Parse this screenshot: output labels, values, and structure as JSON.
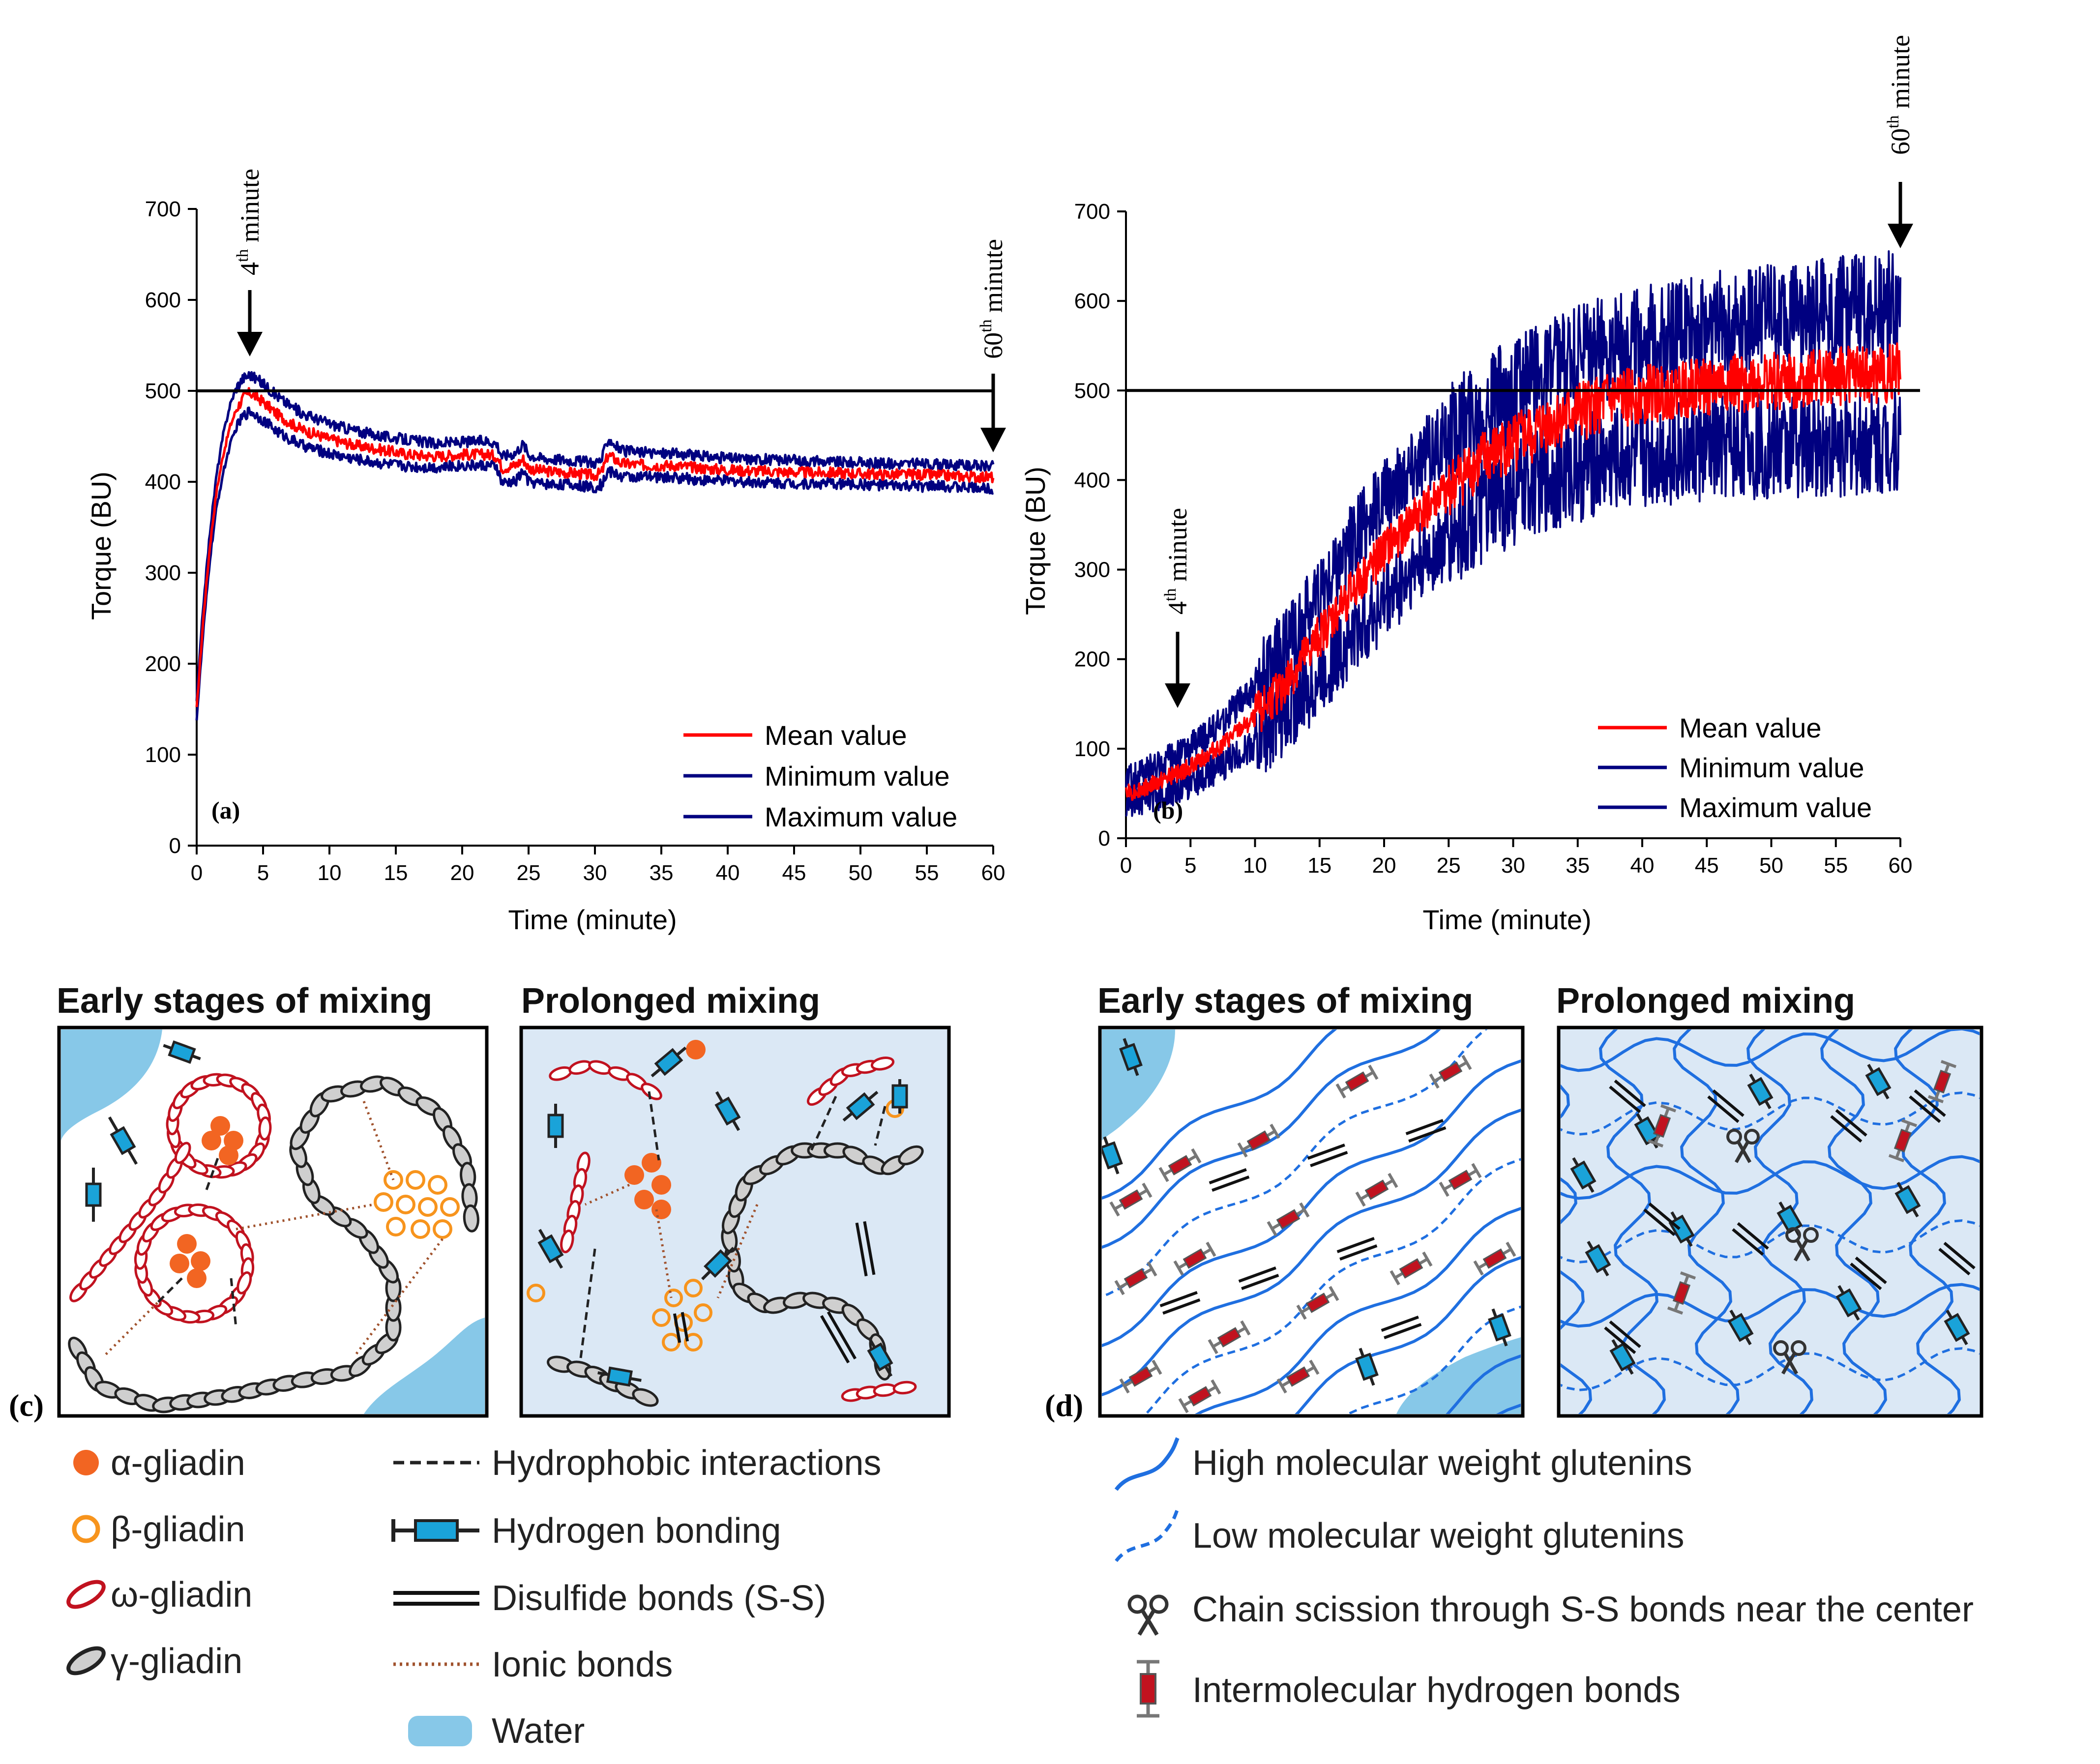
{
  "chart_data": [
    {
      "type": "line",
      "panel_label": "(a)",
      "xlabel": "Time (minute)",
      "ylabel": "Torque (BU)",
      "xlim": [
        0,
        60
      ],
      "ylim": [
        0,
        700
      ],
      "x_ticks": [
        "0",
        "5",
        "10",
        "15",
        "20",
        "25",
        "30",
        "35",
        "40",
        "45",
        "50",
        "55",
        "60"
      ],
      "y_ticks": [
        "0",
        "100",
        "200",
        "300",
        "400",
        "500",
        "600",
        "700"
      ],
      "reference_line": 500,
      "annotations": [
        {
          "base": "4",
          "sup": "th",
          "rest": " minute",
          "x": 4
        },
        {
          "base": "60",
          "sup": "th",
          "rest": " minute",
          "x": 60
        }
      ],
      "legend": [
        "Mean value",
        "Minimum value",
        "Maximum value"
      ],
      "series": [
        {
          "name": "Mean value",
          "color": "#ff0000",
          "x": [
            0,
            0.5,
            1,
            1.5,
            2,
            2.5,
            3,
            3.5,
            4,
            5,
            6,
            7,
            8,
            10,
            12,
            14,
            16,
            18,
            20,
            22,
            22.6,
            23,
            24,
            24.6,
            25,
            26,
            28,
            30,
            30.5,
            31,
            32,
            34,
            36,
            38,
            40,
            42,
            44,
            46,
            48,
            50,
            52,
            54,
            56,
            58,
            60
          ],
          "y": [
            150,
            250,
            330,
            390,
            430,
            460,
            480,
            492,
            498,
            488,
            475,
            465,
            457,
            447,
            440,
            435,
            430,
            428,
            430,
            430,
            428,
            415,
            418,
            425,
            415,
            412,
            410,
            407,
            410,
            430,
            420,
            418,
            418,
            415,
            413,
            412,
            411,
            410,
            410,
            409,
            408,
            408,
            407,
            406,
            405
          ]
        },
        {
          "name": "Minimum value",
          "color": "#000080",
          "x": [
            0,
            0.5,
            1,
            1.5,
            2,
            2.5,
            3,
            3.5,
            4,
            5,
            6,
            7,
            8,
            10,
            12,
            14,
            16,
            18,
            20,
            22,
            22.6,
            23,
            24,
            24.6,
            25,
            26,
            28,
            30,
            30.5,
            31,
            32,
            34,
            36,
            38,
            40,
            42,
            44,
            46,
            48,
            50,
            52,
            54,
            56,
            58,
            60
          ],
          "y": [
            140,
            235,
            315,
            372,
            410,
            440,
            460,
            472,
            478,
            468,
            456,
            447,
            440,
            431,
            425,
            420,
            417,
            416,
            418,
            418,
            416,
            398,
            400,
            412,
            400,
            398,
            397,
            394,
            397,
            412,
            406,
            405,
            405,
            402,
            401,
            400,
            399,
            398,
            398,
            397,
            396,
            395,
            395,
            394,
            393
          ]
        },
        {
          "name": "Maximum value",
          "color": "#000080",
          "x": [
            0,
            0.5,
            1,
            1.5,
            2,
            2.5,
            3,
            3.5,
            4,
            5,
            6,
            7,
            8,
            10,
            12,
            14,
            16,
            18,
            20,
            22,
            22.6,
            23,
            24,
            24.6,
            25,
            26,
            28,
            30,
            30.5,
            31,
            32,
            34,
            36,
            38,
            40,
            42,
            44,
            46,
            48,
            50,
            52,
            54,
            56,
            58,
            60
          ],
          "y": [
            160,
            265,
            345,
            408,
            452,
            484,
            504,
            514,
            518,
            508,
            495,
            484,
            475,
            464,
            456,
            450,
            446,
            442,
            444,
            445,
            442,
            428,
            432,
            442,
            430,
            426,
            424,
            421,
            424,
            448,
            434,
            432,
            431,
            428,
            426,
            425,
            424,
            423,
            422,
            421,
            420,
            420,
            419,
            418,
            417
          ]
        }
      ]
    },
    {
      "type": "line",
      "panel_label": "(b)",
      "xlabel": "Time (minute)",
      "ylabel": "Torque (BU)",
      "xlim": [
        0,
        60
      ],
      "ylim": [
        0,
        700
      ],
      "x_ticks": [
        "0",
        "5",
        "10",
        "15",
        "20",
        "25",
        "30",
        "35",
        "40",
        "45",
        "50",
        "55",
        "60"
      ],
      "y_ticks": [
        "0",
        "100",
        "200",
        "300",
        "400",
        "500",
        "600",
        "700"
      ],
      "reference_line": 500,
      "annotations": [
        {
          "base": "4",
          "sup": "th",
          "rest": " minute",
          "x": 4
        },
        {
          "base": "60",
          "sup": "th",
          "rest": " minute",
          "x": 60
        }
      ],
      "legend": [
        "Mean value",
        "Minimum value",
        "Maximum value"
      ],
      "series": [
        {
          "name": "Mean value",
          "color": "#ff0000",
          "x": [
            0,
            2.5,
            5,
            7.5,
            10,
            12.5,
            15,
            17.5,
            20,
            22.5,
            25,
            27.5,
            30,
            32.5,
            35,
            37.5,
            40,
            42.5,
            45,
            47.5,
            50,
            52.5,
            55,
            57.5,
            60
          ],
          "y": [
            50,
            62,
            80,
            105,
            135,
            175,
            225,
            275,
            320,
            360,
            390,
            420,
            440,
            460,
            475,
            488,
            495,
            500,
            505,
            508,
            510,
            512,
            515,
            518,
            520
          ]
        },
        {
          "name": "Minimum value",
          "color": "#000080",
          "x": [
            0,
            2.5,
            5,
            7.5,
            10,
            12.5,
            15,
            17.5,
            20,
            22.5,
            25,
            27.5,
            30,
            32.5,
            35,
            37.5,
            40,
            42.5,
            45,
            47.5,
            50,
            52.5,
            55,
            57.5,
            60
          ],
          "y": [
            40,
            48,
            62,
            82,
            105,
            140,
            180,
            225,
            265,
            305,
            335,
            365,
            385,
            400,
            412,
            422,
            428,
            432,
            435,
            437,
            438,
            440,
            441,
            442,
            443
          ]
        },
        {
          "name": "Maximum value",
          "color": "#000080",
          "x": [
            0,
            2.5,
            5,
            7.5,
            10,
            12.5,
            15,
            17.5,
            20,
            22.5,
            25,
            27.5,
            30,
            32.5,
            35,
            37.5,
            40,
            42.5,
            45,
            47.5,
            50,
            52.5,
            55,
            57.5,
            60
          ],
          "y": [
            65,
            80,
            100,
            130,
            168,
            215,
            270,
            330,
            380,
            420,
            450,
            480,
            500,
            520,
            535,
            548,
            558,
            565,
            572,
            578,
            582,
            586,
            590,
            594,
            598
          ]
        }
      ]
    }
  ],
  "diagram_c": {
    "panel_letter": "(c)",
    "early_title": "Early stages of mixing",
    "prolonged_title": "Prolonged mixing"
  },
  "diagram_d": {
    "panel_letter": "(d)",
    "early_title": "Early stages of mixing",
    "prolonged_title": "Prolonged mixing"
  },
  "legend_c": {
    "alpha": "α-gliadin",
    "beta": "β-gliadin",
    "omega": "ω-gliadin",
    "gamma": "γ-gliadin",
    "hydrophobic": "Hydrophobic interactions",
    "hbond": "Hydrogen bonding",
    "disulfide": "Disulfide bonds (S-S)",
    "ionic": "Ionic bonds",
    "water": "Water"
  },
  "legend_d": {
    "hmw": "High molecular weight glutenins",
    "lmw": "Low molecular weight glutenins",
    "scission": "Chain scission through S-S bonds near the center",
    "interhb": "Intermolecular hydrogen bonds"
  },
  "colors": {
    "mean": "#ff0000",
    "minmax": "#000080",
    "alpha": "#f26522",
    "beta": "#f7941d",
    "omega": "#c1121f",
    "gamma": "#222222",
    "hbond_box": "#1aa3d9",
    "water": "#87c8e8",
    "glutenin": "#1f6fe0",
    "panel_bg": "#dbe8f5",
    "ionic": "#a0522d"
  }
}
